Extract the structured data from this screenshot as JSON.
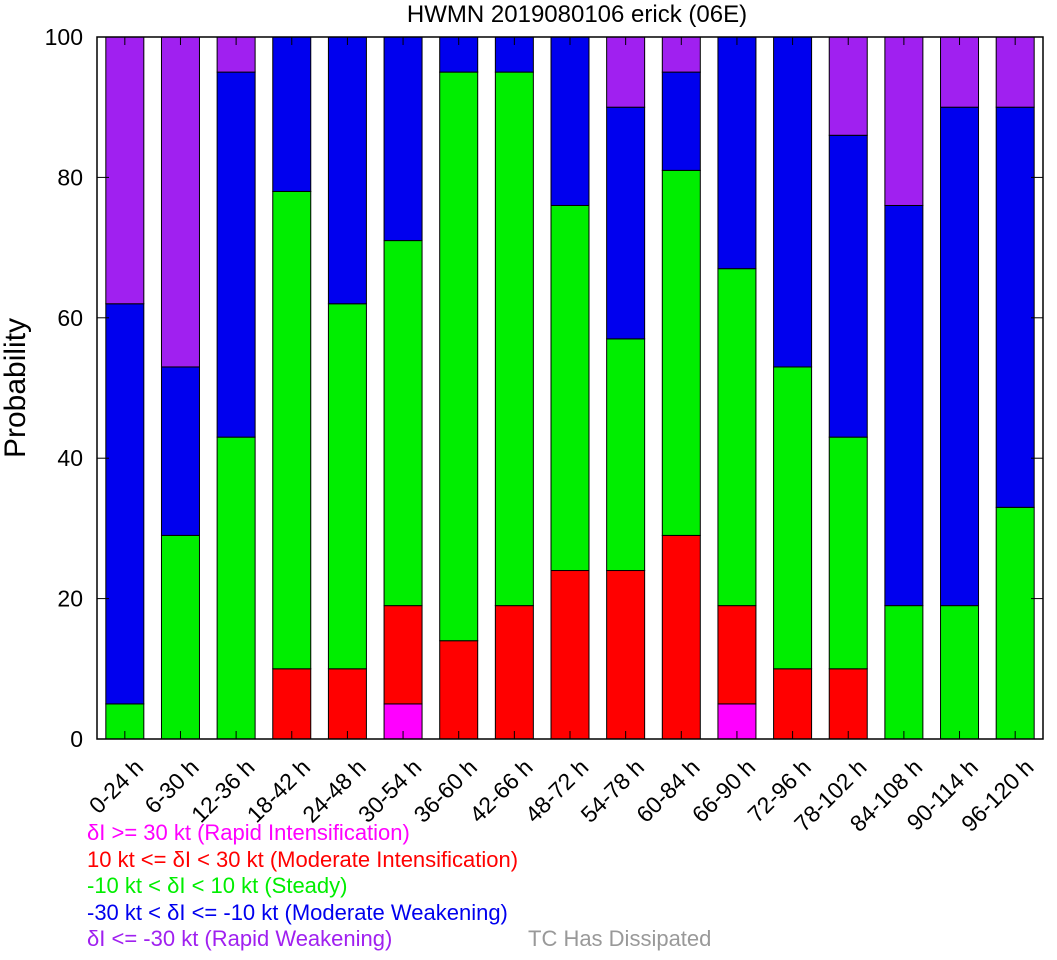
{
  "chart_data": {
    "type": "bar",
    "stacked": true,
    "title": "HWMN 2019080106 erick (06E)",
    "xlabel": "",
    "ylabel": "Probability",
    "ylim": [
      0,
      100
    ],
    "yticks": [
      0,
      20,
      40,
      60,
      80,
      100
    ],
    "grid": false,
    "categories": [
      "0-24 h",
      "6-30 h",
      "12-36 h",
      "18-42 h",
      "24-48 h",
      "30-54 h",
      "36-60 h",
      "42-66 h",
      "48-72 h",
      "54-78 h",
      "60-84 h",
      "66-90 h",
      "72-96 h",
      "78-102 h",
      "84-108 h",
      "90-114 h",
      "96-120 h"
    ],
    "series": [
      {
        "key": "ri",
        "color": "#ff00ff",
        "values": [
          0,
          0,
          0,
          0,
          0,
          5,
          0,
          0,
          0,
          0,
          0,
          5,
          0,
          0,
          0,
          0,
          0
        ]
      },
      {
        "key": "mi",
        "color": "#ff0000",
        "values": [
          0,
          0,
          0,
          10,
          10,
          14,
          14,
          19,
          24,
          24,
          29,
          14,
          10,
          10,
          0,
          0,
          0
        ]
      },
      {
        "key": "steady",
        "color": "#00ee00",
        "values": [
          5,
          29,
          43,
          68,
          52,
          52,
          81,
          76,
          52,
          33,
          52,
          48,
          43,
          33,
          19,
          19,
          33
        ]
      },
      {
        "key": "mw",
        "color": "#0000ee",
        "values": [
          57,
          24,
          52,
          22,
          38,
          29,
          5,
          5,
          24,
          33,
          14,
          33,
          47,
          43,
          57,
          71,
          57
        ]
      },
      {
        "key": "rw",
        "color": "#a020f0",
        "values": [
          38,
          47,
          5,
          0,
          0,
          0,
          0,
          0,
          0,
          10,
          5,
          0,
          0,
          14,
          24,
          10,
          10
        ]
      }
    ]
  },
  "legend": {
    "items": [
      {
        "text": "δI >= 30 kt (Rapid Intensification)",
        "color": "#ff00ff"
      },
      {
        "text": "10 kt <= δI < 30 kt (Moderate Intensification)",
        "color": "#ff0000"
      },
      {
        "text": "-10 kt < δI < 10 kt (Steady)",
        "color": "#00ee00"
      },
      {
        "text": "-30 kt < δI <= -10 kt (Moderate Weakening)",
        "color": "#0000ee"
      },
      {
        "text": "δI <= -30 kt (Rapid Weakening)",
        "color": "#a020f0"
      }
    ],
    "dissipated": "TC Has Dissipated"
  }
}
